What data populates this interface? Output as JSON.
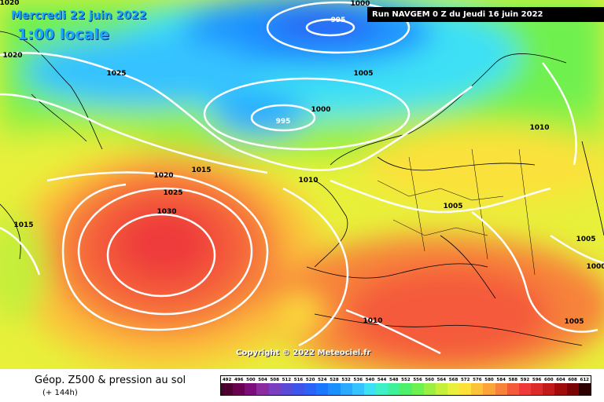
{
  "header": {
    "date": "Mercredi 22 juin 2022",
    "time": "1:00 locale",
    "run": "Run NAVGEM 0 Z du Jeudi 16 juin 2022"
  },
  "copyright": "Copyright © 2022 Meteociel.fr",
  "isobar_labels": [
    "1000",
    "995",
    "1005",
    "1020",
    "1020",
    "1025",
    "1000",
    "995",
    "1010",
    "1015",
    "1020",
    "1025",
    "1030",
    "1010",
    "1015",
    "1005",
    "1005",
    "1000",
    "1005",
    "1010"
  ],
  "footer": {
    "title": "Géop. Z500 & pression au sol",
    "lead": "(+ 144h)",
    "scale": [
      "492",
      "496",
      "500",
      "504",
      "508",
      "512",
      "516",
      "520",
      "524",
      "528",
      "532",
      "536",
      "540",
      "544",
      "548",
      "552",
      "556",
      "560",
      "564",
      "568",
      "572",
      "576",
      "580",
      "584",
      "588",
      "592",
      "596",
      "600",
      "604",
      "608",
      "612"
    ],
    "scale_colors": [
      "#4b0030",
      "#6a0050",
      "#7c0d7a",
      "#8a2ba0",
      "#7a3fc0",
      "#5a4ad6",
      "#3d55e8",
      "#2a63f5",
      "#1a78ff",
      "#1a90ff",
      "#28aaff",
      "#35c2ff",
      "#3ee0f5",
      "#3df0c8",
      "#3df09a",
      "#4cf06a",
      "#6ff050",
      "#9af040",
      "#c4ef3a",
      "#e8f03a",
      "#fbe13a",
      "#fcc23a",
      "#faa43a",
      "#f7823a",
      "#f45a3a",
      "#ee3a3a",
      "#dc2a2a",
      "#c21a1a",
      "#a00c0c",
      "#7a0404",
      "#2a0000"
    ]
  }
}
